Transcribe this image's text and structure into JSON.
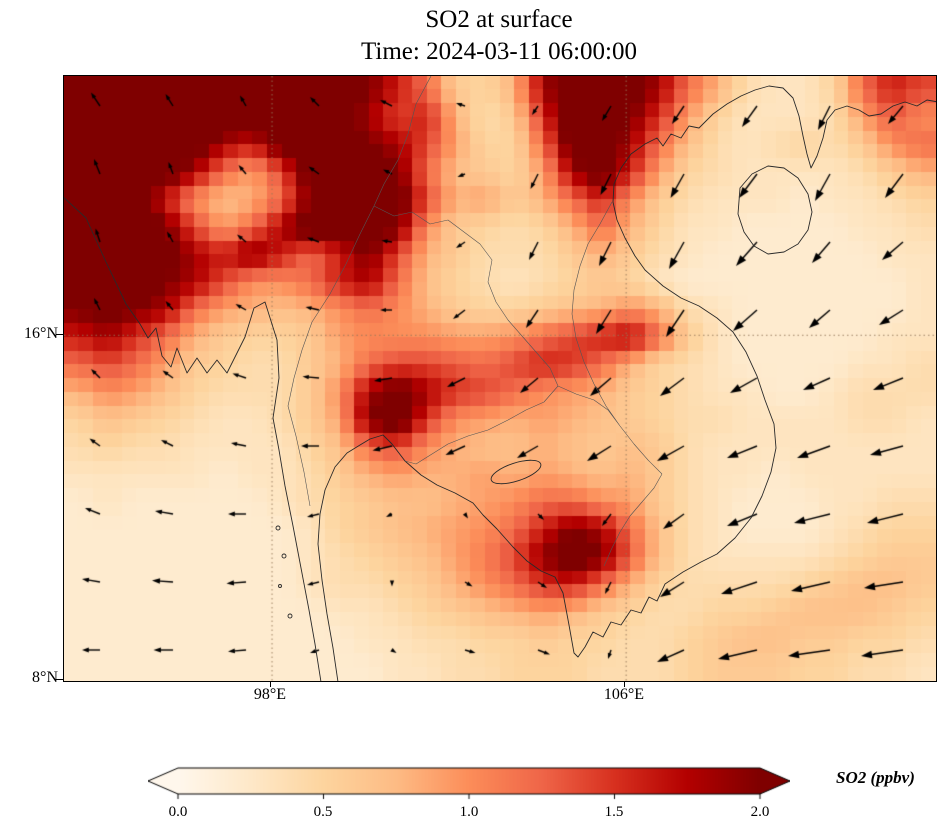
{
  "title": {
    "line1": "SO2 at surface",
    "line2": "Time: 2024-03-11 06:00:00"
  },
  "axes": {
    "x_ticks": [
      {
        "label": "98°E",
        "lon": 98
      },
      {
        "label": "106°E",
        "lon": 106
      }
    ],
    "y_ticks": [
      {
        "label": "16°N",
        "lat": 16
      },
      {
        "label": "8°N",
        "lat": 8
      }
    ]
  },
  "colorbar": {
    "label": "SO2 (ppbv)",
    "ticks": [
      "0.0",
      "0.5",
      "1.0",
      "1.5",
      "2.0"
    ],
    "tick_values": [
      0,
      0.5,
      1.0,
      1.5,
      2.0
    ],
    "vmin": 0.0,
    "vmax": 2.0,
    "extend": "both",
    "colors": [
      "#fff7ec",
      "#fee8c8",
      "#fdd49e",
      "#fdbb84",
      "#fc8d59",
      "#ef6548",
      "#d7301f",
      "#b30000",
      "#7f0000"
    ]
  },
  "chart_data": {
    "type": "heatmap",
    "title": "SO2 at surface",
    "time": "2024-03-11 06:00:00",
    "variable": "SO2",
    "units": "ppbv",
    "vmin": 0.0,
    "vmax": 2.0,
    "extent": {
      "lon_min": 93.3,
      "lon_max": 113.0,
      "lat_min": 8.0,
      "lat_max": 22.0
    },
    "gridlines": {
      "lats": [
        16
      ],
      "lons": [
        98,
        106
      ],
      "style": "dotted"
    },
    "overlays": [
      "coastlines",
      "country-borders",
      "wind-quiver"
    ],
    "grid": {
      "nx": 30,
      "ny": 22,
      "row_order": "north-to-south",
      "values": [
        [
          2.3,
          2.3,
          2.3,
          2.3,
          2.3,
          2.3,
          2.3,
          2.3,
          2.3,
          2.3,
          2.0,
          1.6,
          1.2,
          0.6,
          0.5,
          0.8,
          1.8,
          2.3,
          2.3,
          2.2,
          1.8,
          1.2,
          0.8,
          0.4,
          0.3,
          0.3,
          0.5,
          1.2,
          1.6,
          1.4
        ],
        [
          2.3,
          2.3,
          2.3,
          2.3,
          2.3,
          2.3,
          2.3,
          2.3,
          2.3,
          2.2,
          1.8,
          1.4,
          1.6,
          0.8,
          0.4,
          0.6,
          1.5,
          2.3,
          2.3,
          2.0,
          1.5,
          0.9,
          0.5,
          0.3,
          0.3,
          0.3,
          0.4,
          0.9,
          1.3,
          1.0
        ],
        [
          2.3,
          2.3,
          2.3,
          2.3,
          2.2,
          1.8,
          1.6,
          2.2,
          2.3,
          2.3,
          2.0,
          1.8,
          1.4,
          0.9,
          0.5,
          0.5,
          1.2,
          2.2,
          2.3,
          1.8,
          1.2,
          0.7,
          0.4,
          0.3,
          0.4,
          0.5,
          0.4,
          0.6,
          1.0,
          1.2
        ],
        [
          2.3,
          2.3,
          2.3,
          2.2,
          1.8,
          1.2,
          0.9,
          1.4,
          2.2,
          2.3,
          2.2,
          2.0,
          1.2,
          0.7,
          0.6,
          0.5,
          0.9,
          1.8,
          2.2,
          1.6,
          0.9,
          0.5,
          0.4,
          0.3,
          0.3,
          0.3,
          0.3,
          0.4,
          0.6,
          0.8
        ],
        [
          2.3,
          2.3,
          2.2,
          1.6,
          1.0,
          0.7,
          0.8,
          1.2,
          2.0,
          2.3,
          2.3,
          2.2,
          1.4,
          0.8,
          0.9,
          0.6,
          0.8,
          1.2,
          1.6,
          1.0,
          0.6,
          0.4,
          0.3,
          0.3,
          0.3,
          0.2,
          0.3,
          0.3,
          0.4,
          0.5
        ],
        [
          2.3,
          2.3,
          2.3,
          2.0,
          1.4,
          0.9,
          1.2,
          1.8,
          2.3,
          2.2,
          2.3,
          2.0,
          1.0,
          0.6,
          0.5,
          0.4,
          0.5,
          0.8,
          1.2,
          0.8,
          0.5,
          0.3,
          0.3,
          0.2,
          0.2,
          0.2,
          0.2,
          0.3,
          0.3,
          0.4
        ],
        [
          2.2,
          2.3,
          2.3,
          2.2,
          1.8,
          1.6,
          2.0,
          1.6,
          1.2,
          1.6,
          2.0,
          1.4,
          0.8,
          0.6,
          0.4,
          0.4,
          0.4,
          0.6,
          0.8,
          0.6,
          0.4,
          0.3,
          0.2,
          0.2,
          0.2,
          0.2,
          0.2,
          0.2,
          0.3,
          0.3
        ],
        [
          2.3,
          2.3,
          2.2,
          2.0,
          1.8,
          1.4,
          1.0,
          1.0,
          1.2,
          1.6,
          1.8,
          1.2,
          0.7,
          0.5,
          0.4,
          0.3,
          0.4,
          0.5,
          0.6,
          0.5,
          0.3,
          0.2,
          0.2,
          0.2,
          0.2,
          0.2,
          0.2,
          0.2,
          0.2,
          0.3
        ],
        [
          2.0,
          2.2,
          2.0,
          1.8,
          1.2,
          0.9,
          0.8,
          0.7,
          0.8,
          1.0,
          1.2,
          1.0,
          0.8,
          0.6,
          0.5,
          0.5,
          0.6,
          0.7,
          0.8,
          1.0,
          0.8,
          0.4,
          0.3,
          0.2,
          0.2,
          0.2,
          0.2,
          0.2,
          0.2,
          0.3
        ],
        [
          1.6,
          1.8,
          1.5,
          1.2,
          0.8,
          0.6,
          0.5,
          0.5,
          0.6,
          0.9,
          1.0,
          1.0,
          1.0,
          0.9,
          0.9,
          1.0,
          1.2,
          1.4,
          1.6,
          1.8,
          1.2,
          0.6,
          0.3,
          0.2,
          0.2,
          0.2,
          0.2,
          0.2,
          0.3,
          0.3
        ],
        [
          1.2,
          1.4,
          1.2,
          0.9,
          0.6,
          0.5,
          0.4,
          0.4,
          0.6,
          0.8,
          1.2,
          1.4,
          1.4,
          1.3,
          1.2,
          1.4,
          1.6,
          1.5,
          1.2,
          0.8,
          0.5,
          0.4,
          0.3,
          0.2,
          0.2,
          0.2,
          0.2,
          0.3,
          0.3,
          0.4
        ],
        [
          0.8,
          1.0,
          0.9,
          0.7,
          0.5,
          0.4,
          0.4,
          0.4,
          0.6,
          1.0,
          1.8,
          2.2,
          1.8,
          1.5,
          1.4,
          1.2,
          1.0,
          0.9,
          0.8,
          0.6,
          0.5,
          0.4,
          0.3,
          0.3,
          0.2,
          0.2,
          0.3,
          0.4,
          0.4,
          0.4
        ],
        [
          0.5,
          0.7,
          0.6,
          0.5,
          0.4,
          0.3,
          0.3,
          0.4,
          0.6,
          0.9,
          2.0,
          2.3,
          1.5,
          1.0,
          0.9,
          0.8,
          0.9,
          0.8,
          0.7,
          0.6,
          0.5,
          0.4,
          0.4,
          0.3,
          0.3,
          0.3,
          0.3,
          0.4,
          0.4,
          0.3
        ],
        [
          0.4,
          0.5,
          0.4,
          0.4,
          0.3,
          0.3,
          0.3,
          0.3,
          0.5,
          0.7,
          1.2,
          1.4,
          1.0,
          0.8,
          0.7,
          0.7,
          0.8,
          0.7,
          0.6,
          0.7,
          0.6,
          0.4,
          0.3,
          0.3,
          0.3,
          0.3,
          0.3,
          0.3,
          0.3,
          0.3
        ],
        [
          0.3,
          0.3,
          0.3,
          0.3,
          0.3,
          0.2,
          0.3,
          0.3,
          0.4,
          0.6,
          0.8,
          0.9,
          0.8,
          0.8,
          0.9,
          0.8,
          0.9,
          0.8,
          0.7,
          0.8,
          0.6,
          0.4,
          0.3,
          0.3,
          0.2,
          0.3,
          0.3,
          0.3,
          0.3,
          0.3
        ],
        [
          0.2,
          0.3,
          0.2,
          0.2,
          0.2,
          0.2,
          0.2,
          0.3,
          0.4,
          0.5,
          0.6,
          0.7,
          0.7,
          0.8,
          0.9,
          1.0,
          1.2,
          1.2,
          1.0,
          0.9,
          0.6,
          0.4,
          0.3,
          0.2,
          0.2,
          0.2,
          0.3,
          0.3,
          0.4,
          0.4
        ],
        [
          0.2,
          0.2,
          0.2,
          0.2,
          0.2,
          0.2,
          0.2,
          0.2,
          0.3,
          0.5,
          0.6,
          0.7,
          0.8,
          0.9,
          1.0,
          1.2,
          1.6,
          2.0,
          1.8,
          1.2,
          0.7,
          0.4,
          0.3,
          0.2,
          0.2,
          0.2,
          0.3,
          0.4,
          0.5,
          0.5
        ],
        [
          0.2,
          0.2,
          0.2,
          0.2,
          0.2,
          0.2,
          0.2,
          0.2,
          0.3,
          0.4,
          0.5,
          0.6,
          0.7,
          0.9,
          1.1,
          1.4,
          1.9,
          2.3,
          2.0,
          1.3,
          0.7,
          0.4,
          0.3,
          0.3,
          0.3,
          0.3,
          0.4,
          0.5,
          0.6,
          0.6
        ],
        [
          0.2,
          0.2,
          0.2,
          0.2,
          0.2,
          0.2,
          0.2,
          0.2,
          0.3,
          0.4,
          0.4,
          0.5,
          0.6,
          0.8,
          1.0,
          1.2,
          1.5,
          1.6,
          1.2,
          0.8,
          0.5,
          0.4,
          0.4,
          0.4,
          0.4,
          0.5,
          0.6,
          0.7,
          0.7,
          0.6
        ],
        [
          0.2,
          0.2,
          0.2,
          0.2,
          0.2,
          0.2,
          0.2,
          0.2,
          0.2,
          0.3,
          0.3,
          0.4,
          0.5,
          0.6,
          0.7,
          0.8,
          0.9,
          0.8,
          0.6,
          0.5,
          0.4,
          0.4,
          0.5,
          0.5,
          0.6,
          0.7,
          0.7,
          0.7,
          0.6,
          0.5
        ],
        [
          0.2,
          0.2,
          0.2,
          0.2,
          0.2,
          0.2,
          0.2,
          0.2,
          0.2,
          0.2,
          0.3,
          0.3,
          0.4,
          0.4,
          0.5,
          0.5,
          0.6,
          0.5,
          0.5,
          0.4,
          0.4,
          0.5,
          0.6,
          0.7,
          0.7,
          0.6,
          0.6,
          0.5,
          0.5,
          0.4
        ],
        [
          0.2,
          0.2,
          0.2,
          0.2,
          0.2,
          0.2,
          0.2,
          0.2,
          0.2,
          0.2,
          0.2,
          0.3,
          0.3,
          0.4,
          0.4,
          0.5,
          0.5,
          0.5,
          0.4,
          0.4,
          0.4,
          0.5,
          0.6,
          0.6,
          0.6,
          0.5,
          0.5,
          0.4,
          0.4,
          0.3
        ]
      ]
    },
    "wind": {
      "x0": 36,
      "y0": 30,
      "dx": 73,
      "dy": 68,
      "scale": 1.5,
      "uv": [
        [
          [
            -6,
            9
          ],
          [
            -5,
            8
          ],
          [
            -4,
            7
          ],
          [
            -6,
            6
          ],
          [
            -8,
            4
          ],
          [
            -6,
            2
          ],
          [
            -4,
            -6
          ],
          [
            -6,
            -10
          ],
          [
            -8,
            -12
          ],
          [
            -10,
            -14
          ],
          [
            -8,
            -16
          ],
          [
            -10,
            -12
          ]
        ],
        [
          [
            -4,
            10
          ],
          [
            -3,
            8
          ],
          [
            -5,
            6
          ],
          [
            -7,
            5
          ],
          [
            -6,
            3
          ],
          [
            -5,
            -2
          ],
          [
            -5,
            -10
          ],
          [
            -7,
            -14
          ],
          [
            -9,
            -16
          ],
          [
            -12,
            -16
          ],
          [
            -10,
            -18
          ],
          [
            -12,
            -16
          ]
        ],
        [
          [
            -3,
            9
          ],
          [
            -4,
            7
          ],
          [
            -6,
            5
          ],
          [
            -8,
            3
          ],
          [
            -7,
            1
          ],
          [
            -6,
            -4
          ],
          [
            -6,
            -12
          ],
          [
            -8,
            -16
          ],
          [
            -10,
            -18
          ],
          [
            -14,
            -16
          ],
          [
            -12,
            -14
          ],
          [
            -14,
            -12
          ]
        ],
        [
          [
            -4,
            8
          ],
          [
            -5,
            6
          ],
          [
            -7,
            4
          ],
          [
            -9,
            2
          ],
          [
            -8,
            0
          ],
          [
            -8,
            -6
          ],
          [
            -8,
            -12
          ],
          [
            -10,
            -16
          ],
          [
            -12,
            -18
          ],
          [
            -16,
            -14
          ],
          [
            -14,
            -12
          ],
          [
            -16,
            -10
          ]
        ],
        [
          [
            -6,
            6
          ],
          [
            -7,
            5
          ],
          [
            -9,
            3
          ],
          [
            -11,
            1
          ],
          [
            -12,
            -2
          ],
          [
            -12,
            -6
          ],
          [
            -12,
            -10
          ],
          [
            -14,
            -12
          ],
          [
            -16,
            -12
          ],
          [
            -18,
            -10
          ],
          [
            -18,
            -8
          ],
          [
            -20,
            -8
          ]
        ],
        [
          [
            -7,
            5
          ],
          [
            -8,
            4
          ],
          [
            -10,
            2
          ],
          [
            -12,
            0
          ],
          [
            -13,
            -3
          ],
          [
            -13,
            -6
          ],
          [
            -14,
            -8
          ],
          [
            -16,
            -10
          ],
          [
            -18,
            -10
          ],
          [
            -20,
            -8
          ],
          [
            -22,
            -8
          ],
          [
            -22,
            -6
          ]
        ],
        [
          [
            -10,
            4
          ],
          [
            -12,
            2
          ],
          [
            -12,
            0
          ],
          [
            -8,
            -2
          ],
          [
            -4,
            -2
          ],
          [
            2,
            -3
          ],
          [
            4,
            -4
          ],
          [
            -6,
            -8
          ],
          [
            -14,
            -10
          ],
          [
            -20,
            -8
          ],
          [
            -24,
            -6
          ],
          [
            -24,
            -6
          ]
        ],
        [
          [
            -12,
            2
          ],
          [
            -14,
            1
          ],
          [
            -13,
            -1
          ],
          [
            -8,
            -2
          ],
          [
            0,
            -3
          ],
          [
            5,
            -3
          ],
          [
            6,
            -4
          ],
          [
            -4,
            -8
          ],
          [
            -16,
            -10
          ],
          [
            -24,
            -8
          ],
          [
            -26,
            -6
          ],
          [
            -26,
            -4
          ]
        ],
        [
          [
            -12,
            0
          ],
          [
            -13,
            0
          ],
          [
            -12,
            -1
          ],
          [
            -6,
            -2
          ],
          [
            3,
            -2
          ],
          [
            7,
            -2
          ],
          [
            8,
            -3
          ],
          [
            -2,
            -6
          ],
          [
            -18,
            -8
          ],
          [
            -26,
            -6
          ],
          [
            -28,
            -4
          ],
          [
            -28,
            -4
          ]
        ]
      ]
    }
  }
}
